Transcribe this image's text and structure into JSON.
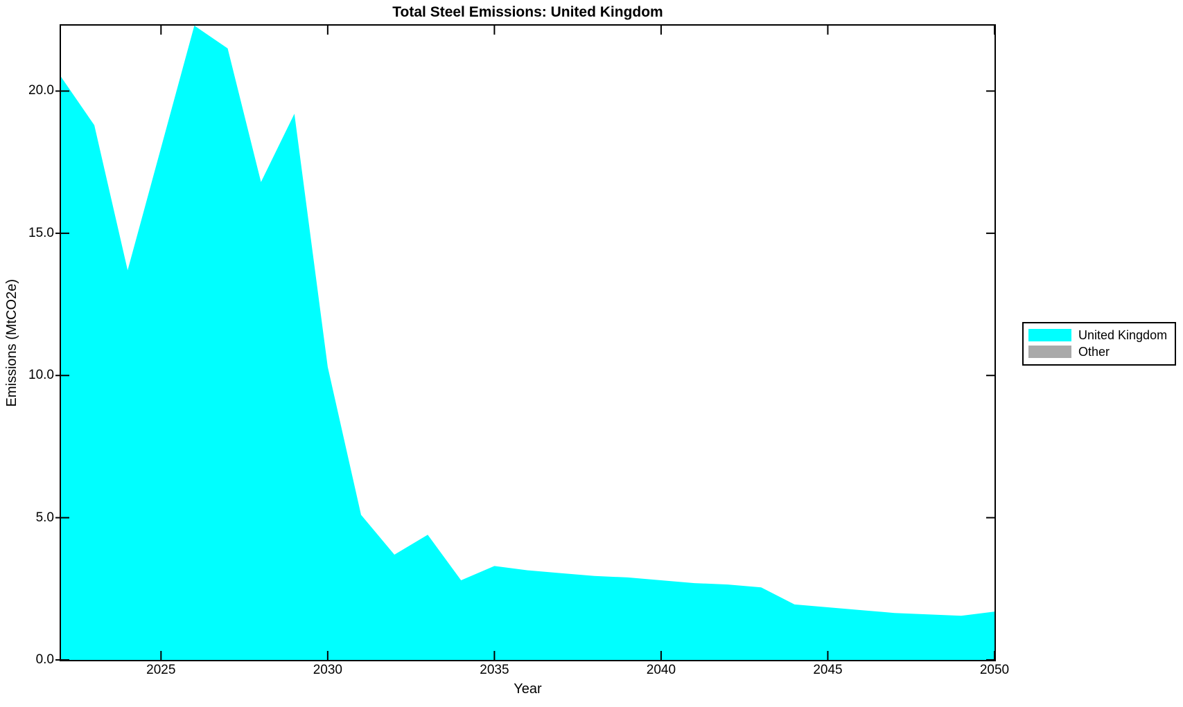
{
  "figure": {
    "title": "Total Steel Emissions: United Kingdom",
    "xlabel": "Year",
    "ylabel": "Emissions (MtCO2e)"
  },
  "legend": {
    "position": "outside-right",
    "items": [
      {
        "label": "United Kingdom",
        "color": "#00FFFF"
      },
      {
        "label": "Other",
        "color": "#A9A9A9"
      }
    ]
  },
  "axes": {
    "xlim": [
      2022,
      2050
    ],
    "ylim": [
      0,
      22.3
    ],
    "x_ticks": [
      2025,
      2030,
      2035,
      2040,
      2045,
      2050
    ],
    "x_tick_labels": [
      "2025",
      "2030",
      "2035",
      "2040",
      "2045",
      "2050"
    ],
    "y_ticks": [
      0,
      5,
      10,
      15,
      20
    ],
    "y_tick_labels": [
      "0.0",
      "5.0",
      "10.0",
      "15.0",
      "20.0"
    ],
    "grid": false,
    "tick_direction": "in"
  },
  "colors": {
    "background": "#FFFFFF",
    "axis": "#000000",
    "text": "#000000",
    "area_fill": "#00FFFF"
  },
  "chart_data": {
    "type": "area",
    "title": "Total Steel Emissions: United Kingdom",
    "xlabel": "Year",
    "ylabel": "Emissions (MtCO2e)",
    "xlim": [
      2022,
      2050
    ],
    "ylim": [
      0,
      22.3
    ],
    "grid": false,
    "legend_position": "outside-right",
    "x": [
      2022,
      2023,
      2024,
      2025,
      2026,
      2027,
      2028,
      2029,
      2030,
      2031,
      2032,
      2033,
      2034,
      2035,
      2036,
      2037,
      2038,
      2039,
      2040,
      2041,
      2042,
      2043,
      2044,
      2045,
      2046,
      2047,
      2048,
      2049,
      2050
    ],
    "series": [
      {
        "name": "United Kingdom",
        "color": "#00FFFF",
        "values": [
          20.5,
          18.8,
          13.7,
          18.0,
          22.3,
          21.5,
          16.8,
          19.2,
          10.3,
          5.1,
          3.7,
          4.4,
          2.8,
          3.3,
          3.15,
          3.05,
          2.95,
          2.9,
          2.8,
          2.7,
          2.65,
          2.55,
          1.95,
          1.85,
          1.75,
          1.65,
          1.6,
          1.55,
          1.7
        ]
      },
      {
        "name": "Other",
        "color": "#A9A9A9",
        "values": []
      }
    ]
  }
}
